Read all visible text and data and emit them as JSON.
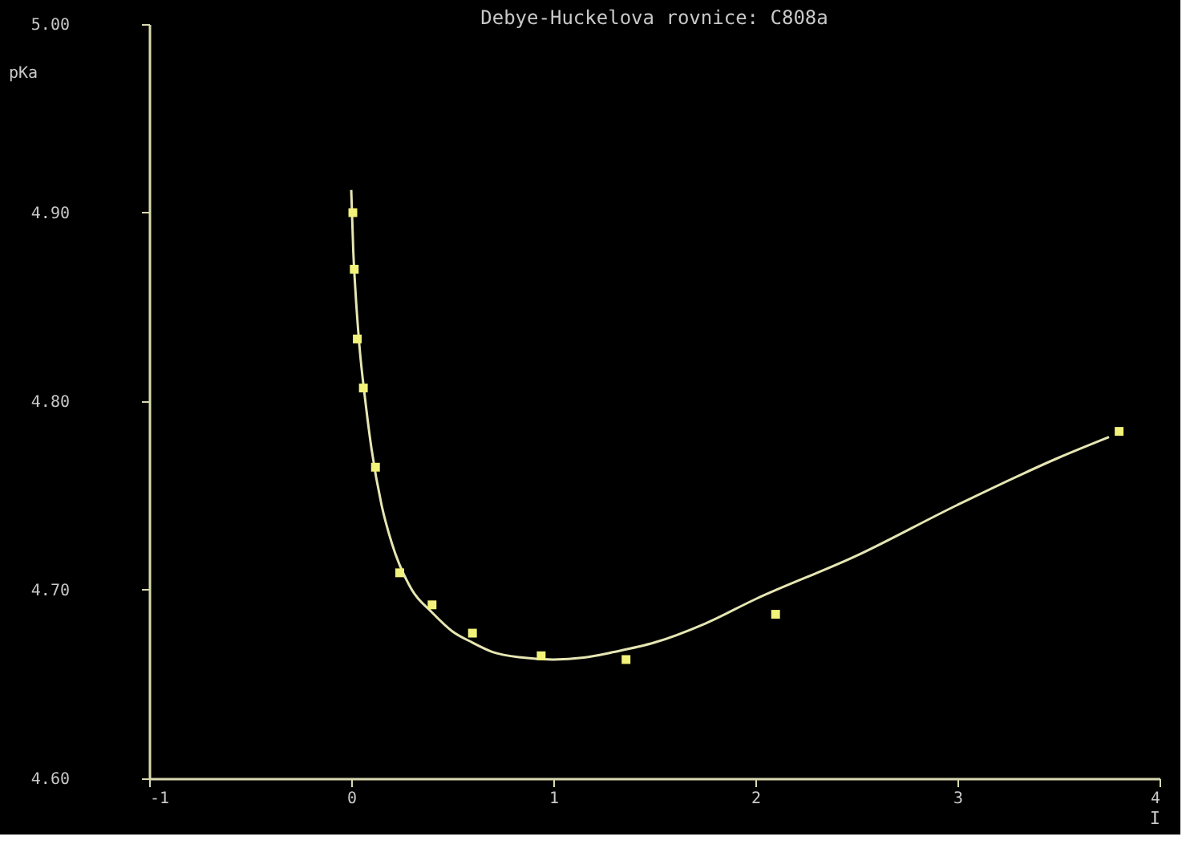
{
  "chart_data": {
    "type": "scatter",
    "title": "Debye-Huckelova rovnice: C808a",
    "xlabel": "I",
    "ylabel": "pKa",
    "series": [
      {
        "type": "line",
        "color": "#e6e6b4",
        "marker": "none",
        "line_style": "solid",
        "x": [
          0.0,
          0.01,
          0.02,
          0.04,
          0.07,
          0.1,
          0.15,
          0.2,
          0.3,
          0.4,
          0.5,
          0.6,
          0.7,
          0.85,
          1.0,
          1.15,
          1.3,
          1.5,
          1.75,
          2.0,
          2.5,
          3.0,
          3.5,
          3.75
        ],
        "values": [
          4.912,
          4.88,
          4.86,
          4.83,
          4.8,
          4.775,
          4.745,
          4.725,
          4.7,
          4.688,
          4.678,
          4.672,
          4.667,
          4.664,
          4.663,
          4.664,
          4.667,
          4.672,
          4.682,
          4.695,
          4.718,
          4.745,
          4.77,
          4.781
        ]
      },
      {
        "type": "scatter",
        "color": "#f2f27a",
        "marker": "square",
        "x": [
          0.008,
          0.015,
          0.03,
          0.06,
          0.12,
          0.24,
          0.4,
          0.6,
          0.94,
          1.36,
          2.1,
          3.8
        ],
        "values": [
          4.9,
          4.87,
          4.833,
          4.807,
          4.765,
          4.709,
          4.692,
          4.677,
          4.665,
          4.663,
          4.687,
          4.784
        ]
      }
    ],
    "xlim": [
      -1,
      4
    ],
    "xticks": [
      -1,
      0,
      1,
      2,
      3,
      4
    ],
    "ylim": [
      4.6,
      5.0
    ],
    "yticks": [
      {
        "value": 4.6,
        "label": "4.60"
      },
      {
        "value": 4.7,
        "label": "4.70"
      },
      {
        "value": 4.8,
        "label": "4.80"
      },
      {
        "value": 4.9,
        "label": "4.90"
      },
      {
        "value": 5.0,
        "label": "5.00"
      }
    ],
    "grid": false
  }
}
